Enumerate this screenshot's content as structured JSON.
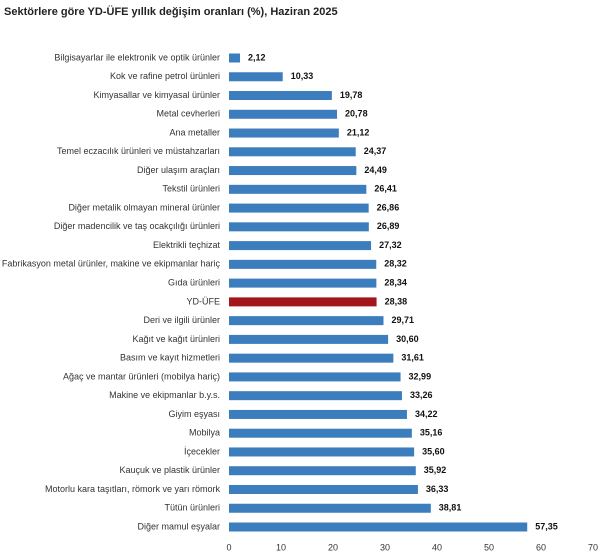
{
  "chart_data": {
    "type": "hbar",
    "title": "Sektörlere göre YD-ÜFE yıllık değişim oranları (%), Haziran 2025",
    "categories": [
      "Bilgisayarlar ile elektronik ve optik ürünler",
      "Kok ve rafine petrol ürünleri",
      "Kimyasallar ve kimyasal ürünler",
      "Metal cevherleri",
      "Ana metaller",
      "Temel eczacılık ürünleri ve müstahzarları",
      "Diğer ulaşım araçları",
      "Tekstil ürünleri",
      "Diğer metalik olmayan mineral ürünler",
      "Diğer madencilik ve taş ocakçılığı ürünleri",
      "Elektrikli teçhizat",
      "Fabrikasyon metal ürünler, makine ve ekipmanlar hariç",
      "Gıda ürünleri",
      "YD-ÜFE",
      "Deri ve ilgili ürünler",
      "Kağıt ve kağıt ürünleri",
      "Basım ve kayıt hizmetleri",
      "Ağaç ve mantar ürünleri (mobilya hariç)",
      "Makine ve ekipmanlar b.y.s.",
      "Giyim eşyası",
      "Mobilya",
      "İçecekler",
      "Kauçuk ve plastik ürünler",
      "Motorlu kara taşıtları, römork ve yarı römork",
      "Tütün ürünleri",
      "Diğer mamul eşyalar"
    ],
    "values": [
      2.12,
      10.33,
      19.78,
      20.78,
      21.12,
      24.37,
      24.49,
      26.41,
      26.86,
      26.89,
      27.32,
      28.32,
      28.34,
      28.38,
      29.71,
      30.6,
      31.61,
      32.99,
      33.26,
      34.22,
      35.16,
      35.6,
      35.92,
      36.33,
      38.81,
      57.35
    ],
    "value_labels": [
      "2,12",
      "10,33",
      "19,78",
      "20,78",
      "21,12",
      "24,37",
      "24,49",
      "26,41",
      "26,86",
      "26,89",
      "27,32",
      "28,32",
      "28,34",
      "28,38",
      "29,71",
      "30,60",
      "31,61",
      "32,99",
      "33,26",
      "34,22",
      "35,16",
      "35,60",
      "35,92",
      "36,33",
      "38,81",
      "57,35"
    ],
    "colors": [
      "#3b7dbd",
      "#3b7dbd",
      "#3b7dbd",
      "#3b7dbd",
      "#3b7dbd",
      "#3b7dbd",
      "#3b7dbd",
      "#3b7dbd",
      "#3b7dbd",
      "#3b7dbd",
      "#3b7dbd",
      "#3b7dbd",
      "#3b7dbd",
      "#a3161c",
      "#3b7dbd",
      "#3b7dbd",
      "#3b7dbd",
      "#3b7dbd",
      "#3b7dbd",
      "#3b7dbd",
      "#3b7dbd",
      "#3b7dbd",
      "#3b7dbd",
      "#3b7dbd",
      "#3b7dbd",
      "#3b7dbd"
    ],
    "xlim": [
      0,
      70
    ],
    "xticks": [
      0,
      10,
      20,
      30,
      40,
      50,
      60,
      70
    ]
  }
}
